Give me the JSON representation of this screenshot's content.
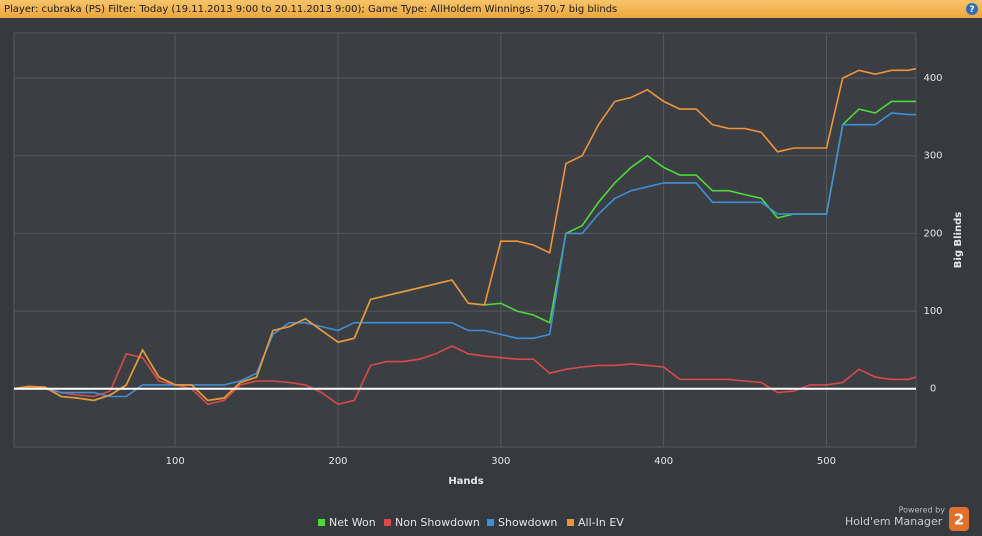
{
  "header": {
    "title": "Player: cubraka (PS) Filter: Today (19.11.2013 9:00 to 20.11.2013 9:00); Game Type: AllHoldem Winnings: 370,7 big blinds",
    "help": "?"
  },
  "branding": {
    "powered_by": "Powered by",
    "product": "Hold'em Manager",
    "version": "2"
  },
  "chart_data": {
    "type": "line",
    "x_label": "Hands",
    "y_label": "Big Blinds",
    "x": [
      1,
      10,
      20,
      30,
      40,
      50,
      60,
      70,
      80,
      90,
      100,
      110,
      120,
      130,
      140,
      150,
      160,
      170,
      180,
      190,
      200,
      210,
      220,
      230,
      240,
      250,
      260,
      270,
      280,
      290,
      300,
      310,
      320,
      330,
      340,
      350,
      360,
      370,
      380,
      390,
      400,
      410,
      420,
      430,
      440,
      450,
      460,
      470,
      480,
      490,
      500,
      510,
      520,
      530,
      540,
      550,
      555
    ],
    "series": [
      {
        "name": "Net Won",
        "color": "#4fd83c",
        "values": [
          0,
          3,
          2,
          -10,
          -12,
          -15,
          -8,
          5,
          50,
          15,
          5,
          5,
          -15,
          -12,
          8,
          15,
          75,
          80,
          90,
          75,
          60,
          65,
          115,
          120,
          125,
          130,
          135,
          140,
          110,
          108,
          110,
          100,
          95,
          85,
          200,
          210,
          240,
          265,
          285,
          300,
          285,
          275,
          275,
          255,
          255,
          250,
          245,
          220,
          225,
          225,
          225,
          340,
          360,
          355,
          370,
          370,
          370
        ]
      },
      {
        "name": "Non Showdown",
        "color": "#d94a4a",
        "values": [
          0,
          2,
          2,
          -5,
          -8,
          -10,
          -3,
          45,
          40,
          10,
          5,
          0,
          -20,
          -15,
          5,
          10,
          10,
          8,
          5,
          -5,
          -20,
          -15,
          30,
          35,
          35,
          38,
          45,
          55,
          45,
          42,
          40,
          38,
          38,
          20,
          25,
          28,
          30,
          30,
          32,
          30,
          28,
          12,
          12,
          12,
          12,
          10,
          8,
          -5,
          -3,
          5,
          5,
          8,
          25,
          15,
          12,
          12,
          15
        ]
      },
      {
        "name": "Showdown",
        "color": "#3f8fd8",
        "values": [
          0,
          0,
          0,
          -5,
          -5,
          -5,
          -10,
          -10,
          5,
          5,
          5,
          5,
          5,
          5,
          10,
          20,
          70,
          85,
          85,
          80,
          75,
          85,
          85,
          85,
          85,
          85,
          85,
          85,
          75,
          75,
          70,
          65,
          65,
          70,
          200,
          200,
          225,
          245,
          255,
          260,
          265,
          265,
          265,
          240,
          240,
          240,
          240,
          225,
          225,
          225,
          225,
          340,
          340,
          340,
          355,
          353,
          353
        ]
      },
      {
        "name": "All-In EV",
        "color": "#f0943a",
        "values": [
          0,
          3,
          2,
          -10,
          -12,
          -15,
          -8,
          5,
          50,
          15,
          5,
          5,
          -15,
          -12,
          8,
          15,
          75,
          80,
          90,
          75,
          60,
          65,
          115,
          120,
          125,
          130,
          135,
          140,
          110,
          108,
          190,
          190,
          185,
          175,
          290,
          300,
          340,
          370,
          375,
          385,
          370,
          360,
          360,
          340,
          335,
          335,
          330,
          305,
          310,
          310,
          310,
          400,
          410,
          405,
          410,
          410,
          412
        ]
      }
    ],
    "xlim": [
      1,
      555
    ],
    "xticks": [
      100,
      200,
      300,
      400,
      500
    ],
    "ylim": [
      -75,
      458
    ],
    "yticks": [
      0,
      100,
      200,
      300,
      400
    ],
    "grid": true
  }
}
